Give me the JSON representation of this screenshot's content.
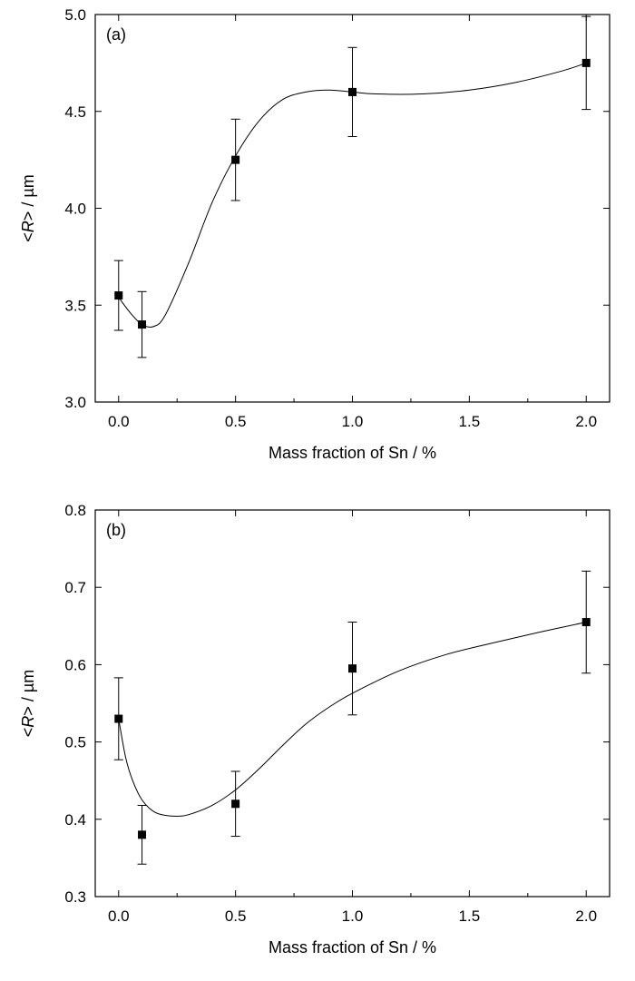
{
  "chart_data": [
    {
      "type": "scatter",
      "panel_label": "(a)",
      "xlabel": "Mass fraction of Sn / %",
      "ylabel_prefix": "<",
      "ylabel_italic": "R",
      "ylabel_suffix": "> / µm",
      "xlim": [
        -0.1,
        2.1
      ],
      "ylim": [
        3.0,
        5.0
      ],
      "x_ticks": [
        "0.0",
        "0.5",
        "1.0",
        "1.5",
        "2.0"
      ],
      "y_ticks": [
        "3.0",
        "3.5",
        "4.0",
        "4.5",
        "5.0"
      ],
      "x_tick_values": [
        0.0,
        0.5,
        1.0,
        1.5,
        2.0
      ],
      "y_tick_values": [
        3.0,
        3.5,
        4.0,
        4.5,
        5.0
      ],
      "x": [
        0.0,
        0.1,
        0.5,
        1.0,
        2.0
      ],
      "y": [
        3.55,
        3.4,
        4.25,
        4.6,
        4.75
      ],
      "error": [
        0.18,
        0.17,
        0.21,
        0.23,
        0.24
      ],
      "fit_curve": {
        "x": [
          0.0,
          0.05,
          0.1,
          0.15,
          0.2,
          0.3,
          0.4,
          0.5,
          0.6,
          0.7,
          0.8,
          0.9,
          1.0,
          1.1,
          1.3,
          1.5,
          1.7,
          1.9,
          2.0
        ],
        "y": [
          3.54,
          3.46,
          3.4,
          3.39,
          3.45,
          3.72,
          4.03,
          4.27,
          4.45,
          4.56,
          4.6,
          4.61,
          4.6,
          4.59,
          4.59,
          4.61,
          4.65,
          4.71,
          4.75
        ]
      },
      "grid": false,
      "legend": "none",
      "colors": {
        "marker": "#000000",
        "line": "#000000",
        "axes": "#000000"
      }
    },
    {
      "type": "scatter",
      "panel_label": "(b)",
      "xlabel": "Mass fraction of Sn / %",
      "ylabel_prefix": "<",
      "ylabel_italic": "R",
      "ylabel_suffix": "> / µm",
      "xlim": [
        -0.1,
        2.1
      ],
      "ylim": [
        0.3,
        0.8
      ],
      "x_ticks": [
        "0.0",
        "0.5",
        "1.0",
        "1.5",
        "2.0"
      ],
      "y_ticks": [
        "0.3",
        "0.4",
        "0.5",
        "0.6",
        "0.7",
        "0.8"
      ],
      "x_tick_values": [
        0.0,
        0.5,
        1.0,
        1.5,
        2.0
      ],
      "y_tick_values": [
        0.3,
        0.4,
        0.5,
        0.6,
        0.7,
        0.8
      ],
      "x": [
        0.0,
        0.1,
        0.5,
        1.0,
        2.0
      ],
      "y": [
        0.53,
        0.38,
        0.42,
        0.595,
        0.655
      ],
      "error": [
        0.053,
        0.038,
        0.042,
        0.06,
        0.066
      ],
      "fit_curve": {
        "x": [
          0.0,
          0.03,
          0.06,
          0.1,
          0.15,
          0.2,
          0.25,
          0.3,
          0.4,
          0.5,
          0.6,
          0.7,
          0.8,
          0.9,
          1.0,
          1.2,
          1.4,
          1.6,
          1.8,
          2.0
        ],
        "y": [
          0.53,
          0.48,
          0.45,
          0.425,
          0.41,
          0.405,
          0.404,
          0.406,
          0.418,
          0.438,
          0.465,
          0.495,
          0.523,
          0.545,
          0.563,
          0.592,
          0.613,
          0.628,
          0.642,
          0.655
        ]
      },
      "grid": false,
      "legend": "none",
      "colors": {
        "marker": "#000000",
        "line": "#000000",
        "axes": "#000000"
      }
    }
  ]
}
